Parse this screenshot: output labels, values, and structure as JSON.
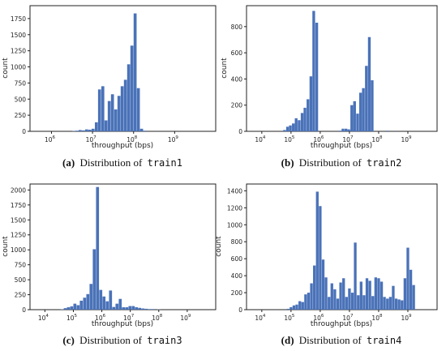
{
  "bar_color": "#4a72b8",
  "chart_data": [
    {
      "type": "bar",
      "panel_label": "(a)",
      "caption_text": "Distribution of",
      "caption_code": "train1",
      "xlabel": "throughput (bps)",
      "ylabel": "count",
      "x_scale": "log",
      "xlim": [
        300000,
        10000000000
      ],
      "ylim": [
        0,
        1950
      ],
      "yticks": [
        0,
        250,
        500,
        750,
        1000,
        1250,
        1500,
        1750
      ],
      "xticks": [
        {
          "value": 1000000,
          "label": "10",
          "exp": "6"
        },
        {
          "value": 10000000,
          "label": "10",
          "exp": "7"
        },
        {
          "value": 100000000,
          "label": "10",
          "exp": "8"
        },
        {
          "value": 1000000000,
          "label": "10",
          "exp": "9"
        }
      ],
      "bins": [
        {
          "x": 3500000,
          "count": 5
        },
        {
          "x": 4200000,
          "count": 10
        },
        {
          "x": 5000000,
          "count": 20
        },
        {
          "x": 6000000,
          "count": 15
        },
        {
          "x": 7200000,
          "count": 30
        },
        {
          "x": 8600000,
          "count": 25
        },
        {
          "x": 10300000,
          "count": 40
        },
        {
          "x": 12400000,
          "count": 140
        },
        {
          "x": 14800000,
          "count": 650
        },
        {
          "x": 17800000,
          "count": 700
        },
        {
          "x": 21300000,
          "count": 170
        },
        {
          "x": 25500000,
          "count": 470
        },
        {
          "x": 30600000,
          "count": 575
        },
        {
          "x": 36700000,
          "count": 340
        },
        {
          "x": 44000000,
          "count": 550
        },
        {
          "x": 52700000,
          "count": 700
        },
        {
          "x": 63200000,
          "count": 800
        },
        {
          "x": 75800000,
          "count": 1040
        },
        {
          "x": 90900000,
          "count": 1330
        },
        {
          "x": 109000000,
          "count": 1830
        },
        {
          "x": 130700000,
          "count": 670
        },
        {
          "x": 156700000,
          "count": 40
        },
        {
          "x": 188000000,
          "count": 10
        }
      ]
    },
    {
      "type": "bar",
      "panel_label": "(b)",
      "caption_text": "Distribution of",
      "caption_code": "train2",
      "xlabel": "throughput (bps)",
      "ylabel": "count",
      "x_scale": "log",
      "xlim": [
        3000,
        10000000000
      ],
      "ylim": [
        0,
        960
      ],
      "yticks": [
        0,
        200,
        400,
        600,
        800
      ],
      "xticks": [
        {
          "value": 10000,
          "label": "10",
          "exp": "4"
        },
        {
          "value": 100000,
          "label": "10",
          "exp": "5"
        },
        {
          "value": 1000000,
          "label": "10",
          "exp": "6"
        },
        {
          "value": 10000000,
          "label": "10",
          "exp": "7"
        },
        {
          "value": 100000000,
          "label": "10",
          "exp": "8"
        },
        {
          "value": 1000000000,
          "label": "10",
          "exp": "9"
        }
      ],
      "bins": [
        {
          "x": 60000,
          "count": 10
        },
        {
          "x": 76000,
          "count": 35
        },
        {
          "x": 95000,
          "count": 45
        },
        {
          "x": 120000,
          "count": 60
        },
        {
          "x": 150000,
          "count": 100
        },
        {
          "x": 190000,
          "count": 85
        },
        {
          "x": 240000,
          "count": 140
        },
        {
          "x": 300000,
          "count": 180
        },
        {
          "x": 380000,
          "count": 245
        },
        {
          "x": 480000,
          "count": 420
        },
        {
          "x": 600000,
          "count": 920
        },
        {
          "x": 760000,
          "count": 830
        },
        {
          "x": 4800000,
          "count": 5
        },
        {
          "x": 6000000,
          "count": 20
        },
        {
          "x": 7600000,
          "count": 20
        },
        {
          "x": 9500000,
          "count": 15
        },
        {
          "x": 12000000,
          "count": 200
        },
        {
          "x": 15000000,
          "count": 230
        },
        {
          "x": 19000000,
          "count": 135
        },
        {
          "x": 24000000,
          "count": 295
        },
        {
          "x": 30000000,
          "count": 330
        },
        {
          "x": 38000000,
          "count": 500
        },
        {
          "x": 48000000,
          "count": 720
        },
        {
          "x": 60000000,
          "count": 390
        },
        {
          "x": 200000000,
          "count": 5
        }
      ]
    },
    {
      "type": "bar",
      "panel_label": "(c)",
      "caption_text": "Distribution of",
      "caption_code": "train3",
      "xlabel": "throughput (bps)",
      "ylabel": "count",
      "x_scale": "log",
      "xlim": [
        3000,
        10000000000
      ],
      "ylim": [
        0,
        2100
      ],
      "yticks": [
        0,
        250,
        500,
        750,
        1000,
        1250,
        1500,
        1750,
        2000
      ],
      "xticks": [
        {
          "value": 10000,
          "label": "10",
          "exp": "4"
        },
        {
          "value": 100000,
          "label": "10",
          "exp": "5"
        },
        {
          "value": 1000000,
          "label": "10",
          "exp": "6"
        },
        {
          "value": 10000000,
          "label": "10",
          "exp": "7"
        },
        {
          "value": 100000000,
          "label": "10",
          "exp": "8"
        },
        {
          "value": 1000000000,
          "label": "10",
          "exp": "9"
        }
      ],
      "bins": [
        {
          "x": 40000,
          "count": 5
        },
        {
          "x": 52000,
          "count": 25
        },
        {
          "x": 67000,
          "count": 40
        },
        {
          "x": 87000,
          "count": 55
        },
        {
          "x": 113000,
          "count": 100
        },
        {
          "x": 147000,
          "count": 75
        },
        {
          "x": 190000,
          "count": 150
        },
        {
          "x": 248000,
          "count": 200
        },
        {
          "x": 322000,
          "count": 260
        },
        {
          "x": 418000,
          "count": 430
        },
        {
          "x": 543000,
          "count": 1010
        },
        {
          "x": 706000,
          "count": 2050
        },
        {
          "x": 918000,
          "count": 330
        },
        {
          "x": 1190000,
          "count": 220
        },
        {
          "x": 1550000,
          "count": 140
        },
        {
          "x": 2020000,
          "count": 320
        },
        {
          "x": 2620000,
          "count": 45
        },
        {
          "x": 3410000,
          "count": 100
        },
        {
          "x": 4430000,
          "count": 180
        },
        {
          "x": 5760000,
          "count": 40
        },
        {
          "x": 7490000,
          "count": 40
        },
        {
          "x": 9740000,
          "count": 60
        },
        {
          "x": 12700000,
          "count": 60
        },
        {
          "x": 16500000,
          "count": 40
        },
        {
          "x": 21400000,
          "count": 30
        },
        {
          "x": 27800000,
          "count": 20
        },
        {
          "x": 36200000,
          "count": 15
        },
        {
          "x": 47000000,
          "count": 10
        },
        {
          "x": 61000000,
          "count": 10
        },
        {
          "x": 100000000,
          "count": 5
        }
      ]
    },
    {
      "type": "bar",
      "panel_label": "(d)",
      "caption_text": "Distribution of",
      "caption_code": "train4",
      "xlabel": "throughput (bps)",
      "ylabel": "count",
      "x_scale": "log",
      "xlim": [
        3000,
        10000000000
      ],
      "ylim": [
        0,
        1480
      ],
      "yticks": [
        0,
        200,
        400,
        600,
        800,
        1000,
        1200,
        1400
      ],
      "xticks": [
        {
          "value": 10000,
          "label": "10",
          "exp": "4"
        },
        {
          "value": 100000,
          "label": "10",
          "exp": "5"
        },
        {
          "value": 1000000,
          "label": "10",
          "exp": "6"
        },
        {
          "value": 10000000,
          "label": "10",
          "exp": "7"
        },
        {
          "value": 100000000,
          "label": "10",
          "exp": "8"
        },
        {
          "value": 1000000000,
          "label": "10",
          "exp": "9"
        }
      ],
      "bins": [
        {
          "x": 80000,
          "count": 10
        },
        {
          "x": 100000,
          "count": 30
        },
        {
          "x": 126000,
          "count": 50
        },
        {
          "x": 158000,
          "count": 60
        },
        {
          "x": 200000,
          "count": 100
        },
        {
          "x": 251000,
          "count": 90
        },
        {
          "x": 316000,
          "count": 180
        },
        {
          "x": 398000,
          "count": 200
        },
        {
          "x": 501000,
          "count": 310
        },
        {
          "x": 631000,
          "count": 520
        },
        {
          "x": 794000,
          "count": 1390
        },
        {
          "x": 1000000,
          "count": 1220
        },
        {
          "x": 1260000,
          "count": 590
        },
        {
          "x": 1580000,
          "count": 380
        },
        {
          "x": 2000000,
          "count": 150
        },
        {
          "x": 2510000,
          "count": 310
        },
        {
          "x": 3160000,
          "count": 240
        },
        {
          "x": 3980000,
          "count": 130
        },
        {
          "x": 5010000,
          "count": 320
        },
        {
          "x": 6310000,
          "count": 370
        },
        {
          "x": 7940000,
          "count": 150
        },
        {
          "x": 10000000,
          "count": 250
        },
        {
          "x": 12600000,
          "count": 200
        },
        {
          "x": 15800000,
          "count": 790
        },
        {
          "x": 20000000,
          "count": 170
        },
        {
          "x": 25100000,
          "count": 330
        },
        {
          "x": 31600000,
          "count": 170
        },
        {
          "x": 39800000,
          "count": 370
        },
        {
          "x": 50100000,
          "count": 340
        },
        {
          "x": 63100000,
          "count": 160
        },
        {
          "x": 79400000,
          "count": 380
        },
        {
          "x": 100000000,
          "count": 370
        },
        {
          "x": 126000000,
          "count": 330
        },
        {
          "x": 158000000,
          "count": 150
        },
        {
          "x": 200000000,
          "count": 130
        },
        {
          "x": 251000000,
          "count": 150
        },
        {
          "x": 316000000,
          "count": 280
        },
        {
          "x": 398000000,
          "count": 130
        },
        {
          "x": 501000000,
          "count": 120
        },
        {
          "x": 631000000,
          "count": 110
        },
        {
          "x": 794000000,
          "count": 370
        },
        {
          "x": 1000000000,
          "count": 730
        },
        {
          "x": 1260000000,
          "count": 470
        },
        {
          "x": 1580000000,
          "count": 290
        }
      ]
    }
  ]
}
